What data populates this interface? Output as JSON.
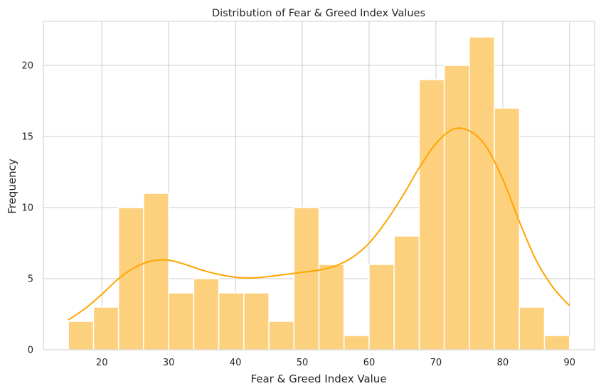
{
  "chart_data": {
    "type": "bar",
    "title": "Distribution of Fear & Greed Index Values",
    "xlabel": "Fear & Greed Index Value",
    "ylabel": "Frequency",
    "xlim": [
      11.25,
      93.75
    ],
    "ylim": [
      0,
      23.1
    ],
    "xticks": [
      20,
      30,
      40,
      50,
      60,
      70,
      80,
      90
    ],
    "yticks": [
      0,
      5,
      10,
      15,
      20
    ],
    "grid": true,
    "legend": "none",
    "bins": {
      "start": 15,
      "width": 3.75,
      "counts": [
        2,
        3,
        10,
        11,
        4,
        5,
        4,
        4,
        2,
        10,
        6,
        1,
        6,
        8,
        19,
        20,
        22,
        17,
        3,
        1
      ]
    },
    "kde": {
      "x": [
        15,
        17.5,
        20,
        22.5,
        25,
        27.5,
        30,
        32.5,
        35,
        37.5,
        40,
        42.5,
        45,
        47.5,
        50,
        52.5,
        55,
        57.5,
        60,
        62.5,
        65,
        67.5,
        70,
        72.5,
        75,
        77.5,
        80,
        82.5,
        85,
        87.5,
        90
      ],
      "y": [
        2.1,
        2.9,
        3.9,
        5.0,
        5.8,
        6.25,
        6.3,
        6.0,
        5.6,
        5.3,
        5.1,
        5.05,
        5.15,
        5.3,
        5.45,
        5.6,
        5.9,
        6.5,
        7.5,
        9.0,
        10.8,
        12.8,
        14.5,
        15.5,
        15.4,
        14.3,
        12.0,
        9.0,
        6.3,
        4.4,
        3.1
      ]
    },
    "colors": {
      "bar_fill": "#fdd07d",
      "bar_edge": "#ffffff",
      "kde_line": "#ffa500",
      "grid": "#cccccc",
      "axes_edge": "#cccccc",
      "text": "#262626"
    }
  }
}
